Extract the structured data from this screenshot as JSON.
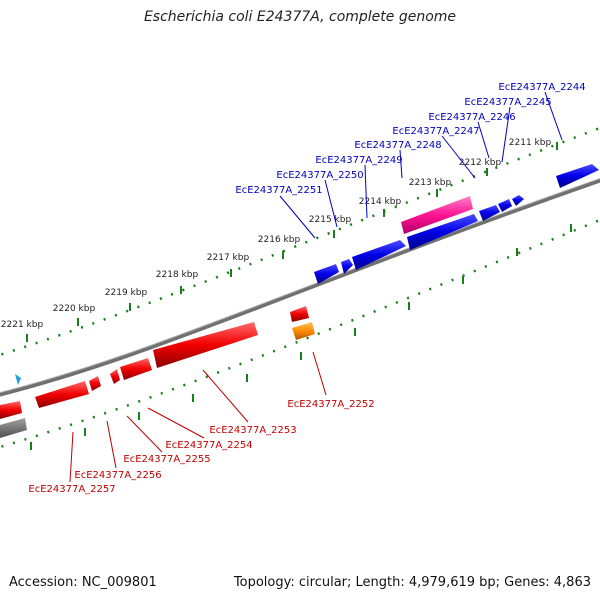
{
  "title": "Escherichia coli E24377A, complete genome",
  "footer": {
    "accession": "Accession: NC_009801",
    "stats": "Topology: circular; Length: 4,979,619 bp; Genes: 4,863"
  },
  "ticks": [
    {
      "label": "2211 kbp"
    },
    {
      "label": "2212 kbp"
    },
    {
      "label": "2213 kbp"
    },
    {
      "label": "2214 kbp"
    },
    {
      "label": "2215 kbp"
    },
    {
      "label": "2216 kbp"
    },
    {
      "label": "2217 kbp"
    },
    {
      "label": "2218 kbp"
    },
    {
      "label": "2219 kbp"
    },
    {
      "label": "2220 kbp"
    },
    {
      "label": "2221 kbp"
    }
  ],
  "upper_genes": [
    {
      "name": "EcE24377A_2244"
    },
    {
      "name": "EcE24377A_2245"
    },
    {
      "name": "EcE24377A_2246"
    },
    {
      "name": "EcE24377A_2247"
    },
    {
      "name": "EcE24377A_2248"
    },
    {
      "name": "EcE24377A_2249"
    },
    {
      "name": "EcE24377A_2250"
    },
    {
      "name": "EcE24377A_2251"
    }
  ],
  "lower_genes": [
    {
      "name": "EcE24377A_2252"
    },
    {
      "name": "EcE24377A_2253"
    },
    {
      "name": "EcE24377A_2254"
    },
    {
      "name": "EcE24377A_2255"
    },
    {
      "name": "EcE24377A_2256"
    },
    {
      "name": "EcE24377A_2257"
    }
  ],
  "colors": {
    "forward": "#0000e0",
    "reverse": "#e00000",
    "rna": "#ff7f00",
    "pseudo": "#ff1493",
    "backbone": "#808080",
    "ticks": "#1a7f1a",
    "upper_label": "#0000c0",
    "lower_label": "#c00000"
  }
}
